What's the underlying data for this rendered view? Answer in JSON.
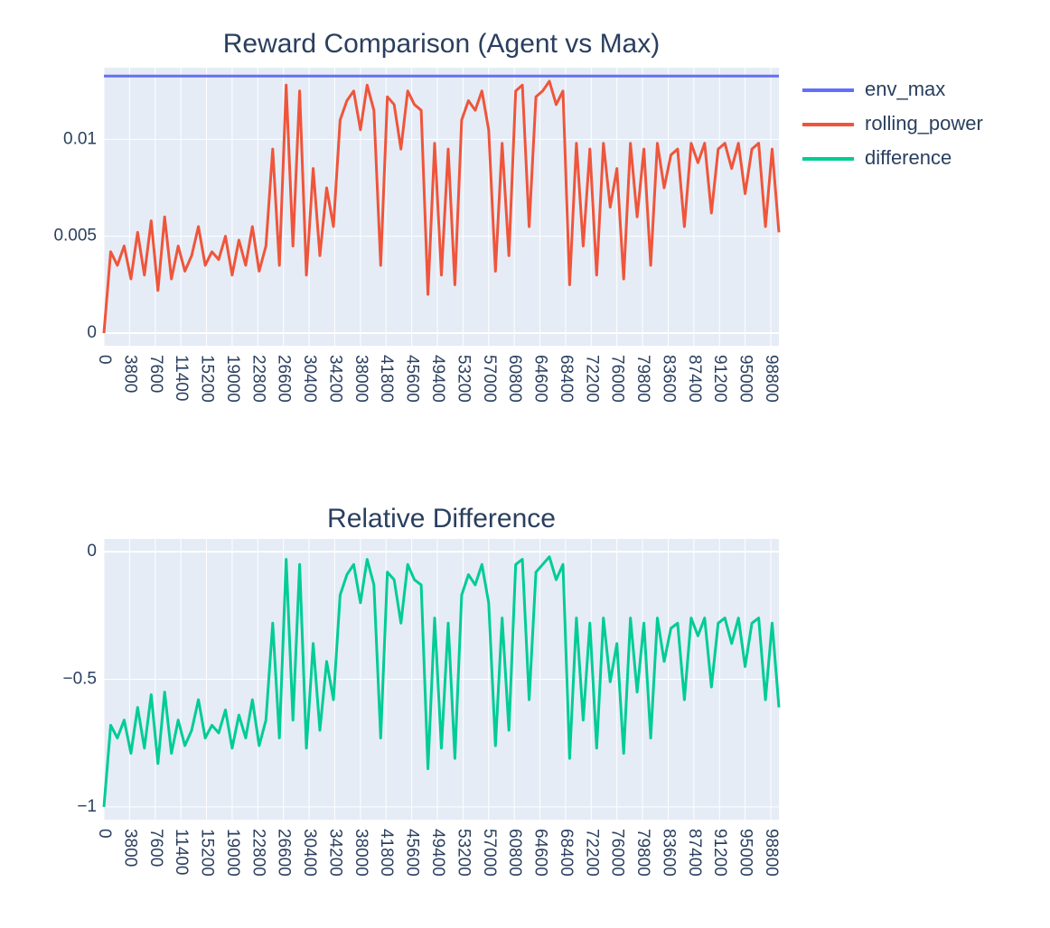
{
  "chart_data": [
    {
      "type": "line",
      "title": "Reward Comparison (Agent vs Max)",
      "x": [
        0,
        1000,
        2000,
        3000,
        4000,
        5000,
        6000,
        7000,
        8000,
        9000,
        10000,
        11000,
        12000,
        13000,
        14000,
        15000,
        16000,
        17000,
        18000,
        19000,
        20000,
        21000,
        22000,
        23000,
        24000,
        25000,
        26000,
        27000,
        28000,
        29000,
        30000,
        31000,
        32000,
        33000,
        34000,
        35000,
        36000,
        37000,
        38000,
        39000,
        40000,
        41000,
        42000,
        43000,
        44000,
        45000,
        46000,
        47000,
        48000,
        49000,
        50000,
        51000,
        52000,
        53000,
        54000,
        55000,
        56000,
        57000,
        58000,
        59000,
        60000,
        61000,
        62000,
        63000,
        64000,
        65000,
        66000,
        67000,
        68000,
        69000,
        70000,
        71000,
        72000,
        73000,
        74000,
        75000,
        76000,
        77000,
        78000,
        79000,
        80000,
        81000,
        82000,
        83000,
        84000,
        85000,
        86000,
        87000,
        88000,
        89000,
        90000,
        91000,
        92000,
        93000,
        94000,
        95000,
        96000,
        97000,
        98000,
        99000,
        100000
      ],
      "series": [
        {
          "name": "env_max",
          "color": "#636efa",
          "x": [
            0,
            100000
          ],
          "values": [
            0.01327,
            0.01327
          ]
        },
        {
          "name": "rolling_power",
          "color": "#ef553b",
          "values": [
            0,
            0.0042,
            0.0035,
            0.0045,
            0.0028,
            0.0052,
            0.003,
            0.0058,
            0.0022,
            0.006,
            0.0028,
            0.0045,
            0.0032,
            0.004,
            0.0055,
            0.0035,
            0.0042,
            0.0038,
            0.005,
            0.003,
            0.0048,
            0.0035,
            0.0055,
            0.0032,
            0.0045,
            0.0095,
            0.0035,
            0.0128,
            0.0045,
            0.0125,
            0.003,
            0.0085,
            0.004,
            0.0075,
            0.0055,
            0.011,
            0.012,
            0.0125,
            0.0105,
            0.0128,
            0.0115,
            0.0035,
            0.0122,
            0.0118,
            0.0095,
            0.0125,
            0.0118,
            0.0115,
            0.002,
            0.0098,
            0.003,
            0.0095,
            0.0025,
            0.011,
            0.012,
            0.0115,
            0.0125,
            0.0105,
            0.0032,
            0.0098,
            0.004,
            0.0125,
            0.0128,
            0.0055,
            0.0122,
            0.0125,
            0.013,
            0.0118,
            0.0125,
            0.0025,
            0.0098,
            0.0045,
            0.0095,
            0.003,
            0.0098,
            0.0065,
            0.0085,
            0.0028,
            0.0098,
            0.006,
            0.0095,
            0.0035,
            0.0098,
            0.0075,
            0.0092,
            0.0095,
            0.0055,
            0.0098,
            0.0088,
            0.0098,
            0.0062,
            0.0095,
            0.0098,
            0.0085,
            0.0098,
            0.0072,
            0.0095,
            0.0098,
            0.0055,
            0.0095,
            0.0052
          ]
        }
      ],
      "xlim": [
        0,
        100000
      ],
      "xticks": [
        0,
        3800,
        7600,
        11400,
        15200,
        19000,
        22800,
        26600,
        30400,
        34200,
        38000,
        41800,
        45600,
        49400,
        53200,
        57000,
        60800,
        64600,
        68400,
        72200,
        76000,
        79800,
        83600,
        87400,
        91200,
        95000,
        98800
      ],
      "ylim": [
        -0.00065,
        0.0137
      ],
      "yticks": [
        0,
        0.005,
        0.01
      ],
      "grid": true
    },
    {
      "type": "line",
      "title": "Relative Difference",
      "x": [
        0,
        1000,
        2000,
        3000,
        4000,
        5000,
        6000,
        7000,
        8000,
        9000,
        10000,
        11000,
        12000,
        13000,
        14000,
        15000,
        16000,
        17000,
        18000,
        19000,
        20000,
        21000,
        22000,
        23000,
        24000,
        25000,
        26000,
        27000,
        28000,
        29000,
        30000,
        31000,
        32000,
        33000,
        34000,
        35000,
        36000,
        37000,
        38000,
        39000,
        40000,
        41000,
        42000,
        43000,
        44000,
        45000,
        46000,
        47000,
        48000,
        49000,
        50000,
        51000,
        52000,
        53000,
        54000,
        55000,
        56000,
        57000,
        58000,
        59000,
        60000,
        61000,
        62000,
        63000,
        64000,
        65000,
        66000,
        67000,
        68000,
        69000,
        70000,
        71000,
        72000,
        73000,
        74000,
        75000,
        76000,
        77000,
        78000,
        79000,
        80000,
        81000,
        82000,
        83000,
        84000,
        85000,
        86000,
        87000,
        88000,
        89000,
        90000,
        91000,
        92000,
        93000,
        94000,
        95000,
        96000,
        97000,
        98000,
        99000,
        100000
      ],
      "series": [
        {
          "name": "difference",
          "color": "#00cc96",
          "values": [
            -1,
            -0.68,
            -0.73,
            -0.66,
            -0.79,
            -0.61,
            -0.77,
            -0.56,
            -0.83,
            -0.55,
            -0.79,
            -0.66,
            -0.76,
            -0.7,
            -0.58,
            -0.73,
            -0.68,
            -0.71,
            -0.62,
            -0.77,
            -0.64,
            -0.73,
            -0.58,
            -0.76,
            -0.66,
            -0.28,
            -0.73,
            -0.03,
            -0.66,
            -0.05,
            -0.77,
            -0.36,
            -0.7,
            -0.43,
            -0.58,
            -0.17,
            -0.09,
            -0.05,
            -0.2,
            -0.03,
            -0.13,
            -0.73,
            -0.08,
            -0.11,
            -0.28,
            -0.05,
            -0.11,
            -0.13,
            -0.85,
            -0.26,
            -0.77,
            -0.28,
            -0.81,
            -0.17,
            -0.09,
            -0.13,
            -0.05,
            -0.2,
            -0.76,
            -0.26,
            -0.7,
            -0.05,
            -0.03,
            -0.58,
            -0.08,
            -0.05,
            -0.02,
            -0.11,
            -0.05,
            -0.81,
            -0.26,
            -0.66,
            -0.28,
            -0.77,
            -0.26,
            -0.51,
            -0.36,
            -0.79,
            -0.26,
            -0.55,
            -0.28,
            -0.73,
            -0.26,
            -0.43,
            -0.3,
            -0.28,
            -0.58,
            -0.26,
            -0.33,
            -0.26,
            -0.53,
            -0.28,
            -0.26,
            -0.36,
            -0.26,
            -0.45,
            -0.28,
            -0.26,
            -0.58,
            -0.28,
            -0.61
          ]
        }
      ],
      "xlim": [
        0,
        100000
      ],
      "xticks": [
        0,
        3800,
        7600,
        11400,
        15200,
        19000,
        22800,
        26600,
        30400,
        34200,
        38000,
        41800,
        45600,
        49400,
        53200,
        57000,
        60800,
        64600,
        68400,
        72200,
        76000,
        79800,
        83600,
        87400,
        91200,
        95000,
        98800
      ],
      "ylim": [
        -1.05,
        0.05
      ],
      "yticks": [
        {
          "value": -1,
          "label": "−1"
        },
        {
          "value": -0.5,
          "label": "−0.5"
        },
        0
      ],
      "grid": true
    }
  ]
}
